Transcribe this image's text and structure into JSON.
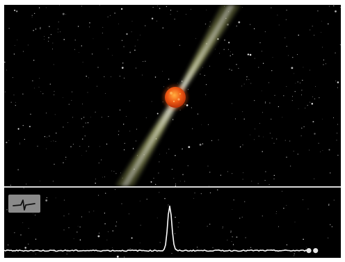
{
  "colors": {
    "background": "#000000",
    "frame": "#ffffff",
    "divider": "#d8d8d8",
    "beam": "#d8e08a",
    "beam_core": "#ffffff",
    "star_body": "#f05a14",
    "star_highlight": "#ffb040",
    "signal_line": "#ffffff",
    "indicator": "#8a8a8a"
  },
  "icons": {
    "indicator": "waveform-glyph-icon",
    "pulsar": "pulsar-star-icon"
  },
  "signal": {
    "baseline_level": 0.02,
    "pulse_position": 0.5,
    "pulse_height": 0.92,
    "marker_positions": [
      0.905,
      0.925
    ]
  }
}
